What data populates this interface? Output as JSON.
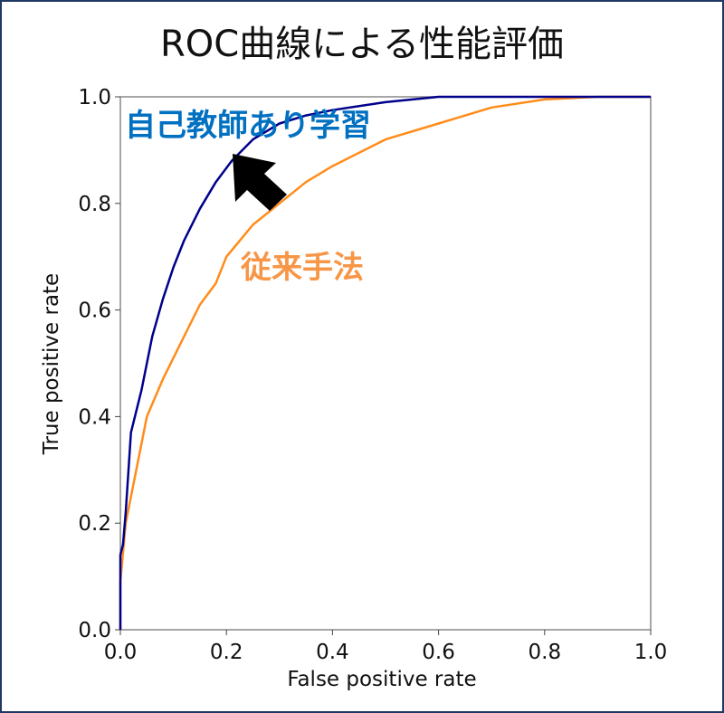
{
  "chart_data": {
    "type": "line",
    "title": "ROC曲線による性能評価",
    "xlabel": "False positive rate",
    "ylabel": "True positive rate",
    "xlim": [
      0,
      1
    ],
    "ylim": [
      0,
      1
    ],
    "xticks": [
      "0.0",
      "0.2",
      "0.4",
      "0.6",
      "0.8",
      "1.0"
    ],
    "yticks": [
      "0.0",
      "0.2",
      "0.4",
      "0.6",
      "0.8",
      "1.0"
    ],
    "grid": false,
    "series": [
      {
        "name": "自己教師あり学習",
        "color": "#00008b",
        "label_color": "#0070c0",
        "x": [
          0,
          0,
          0.005,
          0.01,
          0.02,
          0.04,
          0.06,
          0.08,
          0.1,
          0.12,
          0.15,
          0.18,
          0.21,
          0.25,
          0.3,
          0.35,
          0.4,
          0.5,
          0.6,
          1.0
        ],
        "y": [
          0,
          0.14,
          0.16,
          0.22,
          0.37,
          0.45,
          0.55,
          0.62,
          0.68,
          0.73,
          0.79,
          0.84,
          0.88,
          0.92,
          0.95,
          0.965,
          0.975,
          0.99,
          1.0,
          1.0
        ]
      },
      {
        "name": "従来手法",
        "color": "#ff8c1a",
        "label_color": "#f79646",
        "x": [
          0,
          0,
          0.01,
          0.03,
          0.05,
          0.08,
          0.12,
          0.15,
          0.18,
          0.2,
          0.25,
          0.3,
          0.35,
          0.4,
          0.5,
          0.6,
          0.7,
          0.8,
          0.9,
          1.0
        ],
        "y": [
          0,
          0.09,
          0.2,
          0.3,
          0.4,
          0.47,
          0.55,
          0.61,
          0.65,
          0.7,
          0.76,
          0.8,
          0.84,
          0.87,
          0.92,
          0.95,
          0.98,
          0.995,
          1.0,
          1.0
        ]
      }
    ],
    "annotations": [
      "自己教師あり学習",
      "従来手法"
    ]
  }
}
